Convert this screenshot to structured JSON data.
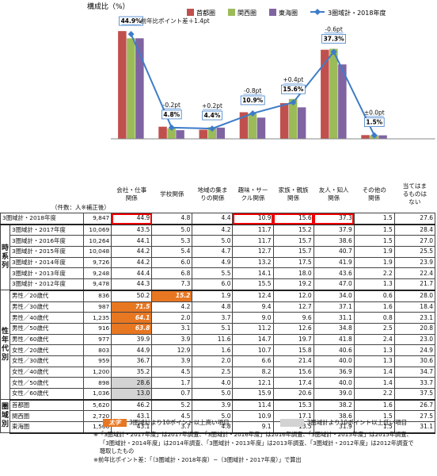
{
  "chart_data": {
    "type": "bar",
    "ylabel": "構成比（%）",
    "categories": [
      "会社・仕事関係",
      "学校関係",
      "地域の集まりの関係",
      "趣味・サークル関係",
      "家族・親族関係",
      "友人・知人関係",
      "その他の関係",
      "当てはまるものはない"
    ],
    "series": [
      {
        "name": "首都圏",
        "color": "#c0504d",
        "values": [
          46.2,
          5.2,
          3.9,
          11.4,
          15.3,
          38.2,
          1.6,
          null
        ]
      },
      {
        "name": "関西圏",
        "color": "#9bbb59",
        "values": [
          43.1,
          4.5,
          5.0,
          10.9,
          17.1,
          38.6,
          1.5,
          null
        ]
      },
      {
        "name": "東海圏",
        "color": "#8064a2",
        "values": [
          43.1,
          3.7,
          4.8,
          9.1,
          13.5,
          31.9,
          1.5,
          null
        ]
      }
    ],
    "line": {
      "name": "3圏域計・2018年度",
      "color": "#3d7cc9",
      "values": [
        44.9,
        4.8,
        4.4,
        10.9,
        15.6,
        37.3,
        1.5
      ]
    },
    "line_labels": [
      "44.9%",
      "4.8%",
      "4.4%",
      "10.9%",
      "15.6%",
      "37.3%",
      "1.5%"
    ],
    "change_labels": [
      "前年比ポイント差＋1.4pt",
      "-0.2pt",
      "+0.2pt",
      "-0.8pt",
      "+0.4pt",
      "-0.6pt",
      "±0.0pt"
    ],
    "ylim": [
      0,
      50
    ]
  },
  "table": {
    "header_label": "（件数：人※補正後）",
    "columns": [
      "会社・仕事\n関係",
      "学校関係",
      "地域の集ま\nりの関係",
      "趣味・サー\nクル関係",
      "家族・親族\n関係",
      "友人・知人\n関係",
      "その他の\n関係",
      "当てはま\nるものは\nない"
    ],
    "groups": [
      {
        "label": "",
        "rows": [
          {
            "name": "3圏域計・2018年度",
            "n": "9,847",
            "v": [
              "44.9",
              "4.8",
              "4.4",
              "10.9",
              "15.6",
              "37.3",
              "1.5",
              "27.6"
            ]
          }
        ]
      },
      {
        "label": "時系列",
        "rows": [
          {
            "name": "3圏域計・2017年度",
            "n": "10,069",
            "v": [
              "43.5",
              "5.0",
              "4.2",
              "11.7",
              "15.2",
              "37.9",
              "1.5",
              "28.4"
            ]
          },
          {
            "name": "3圏域計・2016年度",
            "n": "10,264",
            "v": [
              "44.1",
              "5.3",
              "5.0",
              "11.7",
              "15.7",
              "38.6",
              "1.5",
              "27.0"
            ]
          },
          {
            "name": "3圏域計・2015年度",
            "n": "10,048",
            "v": [
              "44.2",
              "5.4",
              "4.7",
              "12.7",
              "15.7",
              "40.7",
              "1.9",
              "25.5"
            ]
          },
          {
            "name": "3圏域計・2014年度",
            "n": "9,726",
            "v": [
              "44.2",
              "6.0",
              "4.9",
              "13.2",
              "17.5",
              "41.9",
              "1.9",
              "23.9"
            ]
          },
          {
            "name": "3圏域計・2013年度",
            "n": "9,248",
            "v": [
              "44.4",
              "6.8",
              "5.5",
              "14.1",
              "18.0",
              "43.6",
              "2.2",
              "22.4"
            ]
          },
          {
            "name": "3圏域計・2012年度",
            "n": "9,478",
            "v": [
              "44.3",
              "7.3",
              "6.0",
              "15.5",
              "19.2",
              "47.0",
              "1.3",
              "21.7"
            ]
          }
        ]
      },
      {
        "label": "性年代別",
        "rows": [
          {
            "name": "男性／20歳代",
            "n": "836",
            "v": [
              "50.2",
              "15.2",
              "1.9",
              "12.4",
              "12.0",
              "34.0",
              "0.6",
              "28.0"
            ]
          },
          {
            "name": "男性／30歳代",
            "n": "987",
            "v": [
              "71.5",
              "4.2",
              "4.8",
              "9.4",
              "12.7",
              "37.1",
              "1.6",
              "18.4"
            ]
          },
          {
            "name": "男性／40歳代",
            "n": "1,235",
            "v": [
              "64.1",
              "2.0",
              "3.7",
              "9.0",
              "9.6",
              "31.1",
              "0.8",
              "23.1"
            ]
          },
          {
            "name": "男性／50歳代",
            "n": "916",
            "v": [
              "63.8",
              "3.1",
              "5.1",
              "11.2",
              "12.6",
              "34.8",
              "2.5",
              "20.8"
            ]
          },
          {
            "name": "男性／60歳代",
            "n": "977",
            "v": [
              "39.9",
              "3.9",
              "11.6",
              "14.7",
              "19.7",
              "41.8",
              "2.4",
              "23.0"
            ]
          },
          {
            "name": "女性／20歳代",
            "n": "803",
            "v": [
              "44.9",
              "12.9",
              "1.6",
              "10.7",
              "15.8",
              "40.6",
              "1.3",
              "24.9"
            ]
          },
          {
            "name": "女性／30歳代",
            "n": "959",
            "v": [
              "36.7",
              "3.9",
              "2.0",
              "6.6",
              "21.4",
              "40.0",
              "1.3",
              "30.6"
            ]
          },
          {
            "name": "女性／40歳代",
            "n": "1,200",
            "v": [
              "35.2",
              "4.5",
              "2.5",
              "8.2",
              "15.6",
              "36.9",
              "1.4",
              "34.7"
            ]
          },
          {
            "name": "女性／50歳代",
            "n": "898",
            "v": [
              "28.6",
              "1.7",
              "4.0",
              "12.1",
              "17.4",
              "40.0",
              "1.4",
              "33.7"
            ]
          },
          {
            "name": "女性／60歳代",
            "n": "1,036",
            "v": [
              "13.0",
              "0.7",
              "5.0",
              "15.9",
              "20.6",
              "39.0",
              "2.2",
              "37.5"
            ]
          }
        ]
      },
      {
        "label": "圏域別",
        "rows": [
          {
            "name": "首都圏",
            "n": "5,620",
            "v": [
              "46.2",
              "5.2",
              "3.9",
              "11.4",
              "15.3",
              "38.2",
              "1.6",
              "26.7"
            ]
          },
          {
            "name": "関西圏",
            "n": "2,720",
            "v": [
              "43.1",
              "4.5",
              "5.0",
              "10.9",
              "17.1",
              "38.6",
              "1.5",
              "27.5"
            ]
          },
          {
            "name": "東海圏",
            "n": "1,506",
            "v": [
              "43.1",
              "3.7",
              "4.8",
              "9.1",
              "13.5",
              "31.9",
              "1.5",
              "31.1"
            ]
          }
        ]
      }
    ]
  },
  "legend_table": {
    "hi_swatch": "太字",
    "hi_text": "3圏域計より10ポイント以上高い項目",
    "lo_text": "3圏域計より10ポイント以上低い項目"
  },
  "notes": [
    "※「3圏域計・2017年度」は2017年調査、「3圏域計・2016年度」は2016年調査、「3圏域計・2015年度」は2015年調査、",
    "「3圏域計・2014年度」は2014年調査、「3圏域計・2013年度」は2013年調査、「3圏域計・2012年度」は2012年調査で",
    "聴取したもの",
    "※前年比ポイント差：「（3圏域計・2018年度）−（3圏域計・2017年度）」で算出"
  ]
}
